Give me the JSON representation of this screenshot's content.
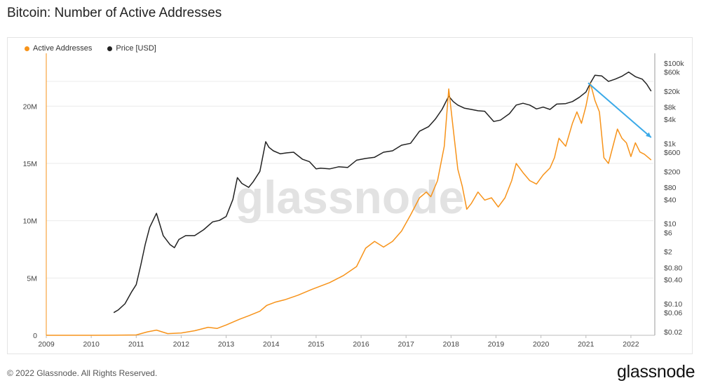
{
  "title": "Bitcoin: Number of Active Addresses",
  "copyright": "© 2022 Glassnode. All Rights Reserved.",
  "logo": "glassnode",
  "watermark": "glassnode",
  "colors": {
    "active": "#f7931a",
    "price": "#222222",
    "trend": "#3aa9e8",
    "grid": "#ebebeb"
  },
  "chart_data": {
    "type": "line",
    "title": "Bitcoin: Number of Active Addresses",
    "legend_position": "top-left",
    "grid": true,
    "x_ticks": [
      "2009",
      "2010",
      "2011",
      "2012",
      "2013",
      "2014",
      "2015",
      "2016",
      "2017",
      "2018",
      "2019",
      "2020",
      "2021",
      "2022"
    ],
    "xlim": [
      2009.0,
      2022.5
    ],
    "y_left": {
      "ticks": [
        "0",
        "5M",
        "10M",
        "15M",
        "20M"
      ],
      "tick_values": [
        0,
        5000000,
        10000000,
        15000000,
        20000000
      ],
      "ylim": [
        0,
        24000000
      ]
    },
    "y_right": {
      "scale": "log",
      "ticks": [
        "$100k",
        "$60k",
        "$20k",
        "$8k",
        "$4k",
        "$1k",
        "$600",
        "$200",
        "$80",
        "$40",
        "$10",
        "$6",
        "$2",
        "$0.80",
        "$0.40",
        "$0.10",
        "$0.06",
        "$0.02"
      ],
      "tick_values": [
        100000,
        60000,
        20000,
        8000,
        4000,
        1000,
        600,
        200,
        80,
        40,
        10,
        6,
        2,
        0.8,
        0.4,
        0.1,
        0.06,
        0.02
      ]
    },
    "series": [
      {
        "name": "Active Addresses",
        "axis": "left",
        "x": [
          2009.0,
          2010.0,
          2010.5,
          2011.0,
          2011.25,
          2011.45,
          2011.7,
          2012.0,
          2012.3,
          2012.6,
          2012.8,
          2013.0,
          2013.3,
          2013.5,
          2013.75,
          2013.9,
          2014.1,
          2014.3,
          2014.6,
          2014.9,
          2015.1,
          2015.3,
          2015.6,
          2015.9,
          2016.1,
          2016.3,
          2016.5,
          2016.7,
          2016.9,
          2017.1,
          2017.3,
          2017.45,
          2017.55,
          2017.7,
          2017.85,
          2017.95,
          2018.05,
          2018.15,
          2018.25,
          2018.35,
          2018.45,
          2018.6,
          2018.75,
          2018.9,
          2019.05,
          2019.2,
          2019.35,
          2019.45,
          2019.6,
          2019.75,
          2019.9,
          2020.05,
          2020.2,
          2020.3,
          2020.4,
          2020.55,
          2020.7,
          2020.8,
          2020.9,
          2021.0,
          2021.1,
          2021.2,
          2021.3,
          2021.4,
          2021.5,
          2021.6,
          2021.7,
          2021.8,
          2021.9,
          2022.0,
          2022.1,
          2022.2,
          2022.3,
          2022.45
        ],
        "values": [
          0,
          0,
          5000,
          30000,
          300000,
          450000,
          150000,
          200000,
          400000,
          700000,
          600000,
          900000,
          1400000,
          1700000,
          2100000,
          2600000,
          2900000,
          3100000,
          3500000,
          4000000,
          4300000,
          4600000,
          5200000,
          6000000,
          7600000,
          8200000,
          7700000,
          8200000,
          9100000,
          10500000,
          12000000,
          12500000,
          12100000,
          13500000,
          16500000,
          21500000,
          18000000,
          14500000,
          13000000,
          11000000,
          11500000,
          12500000,
          11800000,
          12000000,
          11200000,
          12000000,
          13500000,
          15000000,
          14200000,
          13500000,
          13200000,
          14000000,
          14600000,
          15500000,
          17200000,
          16500000,
          18500000,
          19500000,
          18500000,
          20000000,
          22000000,
          20500000,
          19500000,
          15500000,
          15000000,
          16500000,
          18000000,
          17200000,
          16800000,
          15600000,
          16800000,
          16000000,
          15800000,
          15300000
        ]
      },
      {
        "name": "Price [USD]",
        "axis": "right",
        "x": [
          2010.5,
          2010.6,
          2010.75,
          2010.9,
          2011.0,
          2011.1,
          2011.2,
          2011.3,
          2011.45,
          2011.6,
          2011.75,
          2011.85,
          2011.95,
          2012.1,
          2012.3,
          2012.5,
          2012.7,
          2012.85,
          2013.0,
          2013.15,
          2013.25,
          2013.35,
          2013.5,
          2013.6,
          2013.75,
          2013.88,
          2013.95,
          2014.05,
          2014.2,
          2014.35,
          2014.5,
          2014.7,
          2014.85,
          2015.0,
          2015.1,
          2015.3,
          2015.5,
          2015.7,
          2015.9,
          2016.1,
          2016.3,
          2016.5,
          2016.7,
          2016.9,
          2017.1,
          2017.3,
          2017.5,
          2017.65,
          2017.8,
          2017.95,
          2018.05,
          2018.15,
          2018.3,
          2018.45,
          2018.6,
          2018.75,
          2018.95,
          2019.1,
          2019.3,
          2019.45,
          2019.6,
          2019.75,
          2019.9,
          2020.05,
          2020.2,
          2020.35,
          2020.55,
          2020.7,
          2020.85,
          2021.0,
          2021.1,
          2021.2,
          2021.35,
          2021.5,
          2021.65,
          2021.8,
          2021.95,
          2022.1,
          2022.25,
          2022.35,
          2022.45
        ],
        "values": [
          0.06,
          0.07,
          0.1,
          0.2,
          0.3,
          0.9,
          3,
          8,
          18,
          5,
          3,
          2.5,
          4,
          5,
          5,
          7,
          11,
          12,
          15,
          40,
          140,
          100,
          80,
          110,
          200,
          1100,
          800,
          650,
          550,
          580,
          600,
          400,
          350,
          230,
          240,
          230,
          260,
          250,
          380,
          420,
          450,
          600,
          650,
          900,
          1000,
          2000,
          2600,
          4000,
          7000,
          15000,
          11000,
          9000,
          7500,
          7000,
          6500,
          6300,
          3500,
          3800,
          5500,
          9000,
          10000,
          9000,
          7200,
          8000,
          7000,
          9500,
          9800,
          11000,
          14000,
          19000,
          32000,
          50000,
          48000,
          35000,
          40000,
          47000,
          60000,
          46000,
          40000,
          30000,
          20000
        ]
      }
    ],
    "trend_line": {
      "from": [
        2021.05,
        32000
      ],
      "to": [
        2022.45,
        1400
      ],
      "axis": "right"
    }
  }
}
